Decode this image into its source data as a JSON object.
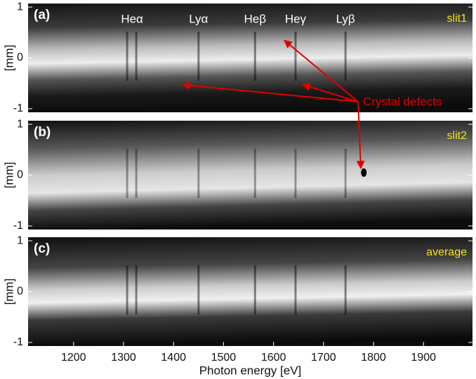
{
  "chart_data": [
    {
      "type": "image",
      "label": "(a)",
      "tag": "slit1",
      "ylabel": "[mm]",
      "ylim": [
        -1.07,
        1.07
      ],
      "yticks": [
        1,
        0,
        -1
      ],
      "xlim": [
        1109,
        1998
      ],
      "annotations": [
        {
          "text": "Heα",
          "x": 1317
        },
        {
          "text": "Lyα",
          "x": 1450
        },
        {
          "text": "Heβ",
          "x": 1563
        },
        {
          "text": "Heγ",
          "x": 1644
        },
        {
          "text": "Lyβ",
          "x": 1744
        }
      ],
      "callout": "Crystal defects",
      "defects": [
        {
          "x": 1615,
          "y": 0.4
        },
        {
          "x": 1410,
          "y": -0.52
        },
        {
          "x": 1650,
          "y": -0.5
        }
      ]
    },
    {
      "type": "image",
      "label": "(b)",
      "tag": "slit2",
      "ylabel": "[mm]",
      "ylim": [
        -1.07,
        1.07
      ],
      "yticks": [
        1,
        0,
        -1
      ],
      "xlim": [
        1109,
        1998
      ],
      "defects": [
        {
          "x": 1775,
          "y": 0.05
        }
      ]
    },
    {
      "type": "image",
      "label": "(c)",
      "tag": "average",
      "ylabel": "[mm]",
      "ylim": [
        -1.07,
        1.07
      ],
      "yticks": [
        1,
        0,
        -1
      ],
      "xlim": [
        1109,
        1998
      ],
      "xlabel": "Photon energy [eV]",
      "xticks": [
        1200,
        1300,
        1400,
        1500,
        1600,
        1700,
        1800,
        1900
      ]
    }
  ]
}
